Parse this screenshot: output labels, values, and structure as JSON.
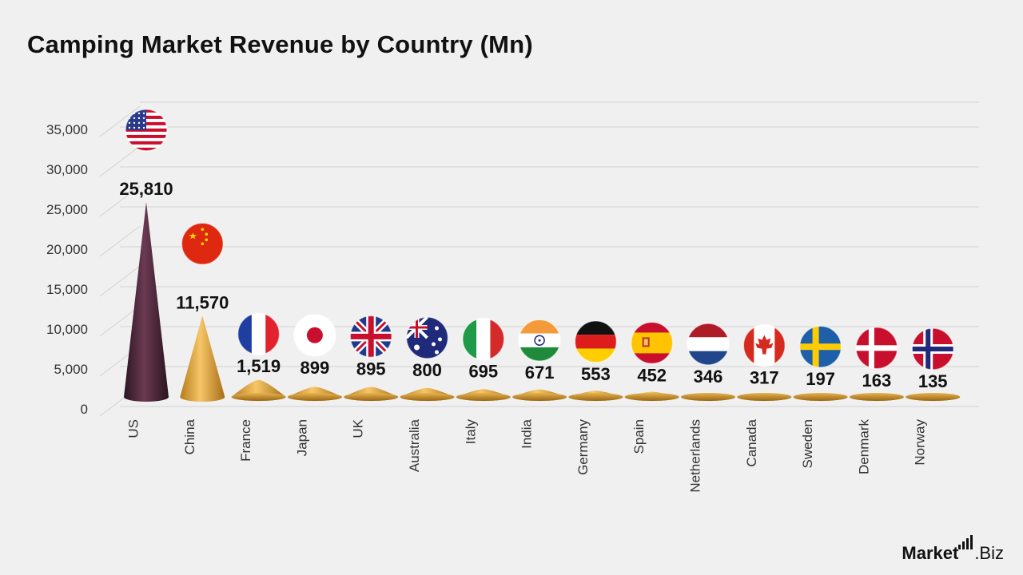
{
  "title": "Camping Market Revenue by Country (Mn)",
  "brand": {
    "name_bold": "Market",
    "name_rest": ".Biz"
  },
  "colors": {
    "us_cone": "#4a2436",
    "gold_cone": "#e0a838",
    "grid": "#d2d2d2",
    "text": "#111111",
    "axis_text": "#333333"
  },
  "chart_data": {
    "type": "bar",
    "categories": [
      "US",
      "China",
      "France",
      "Japan",
      "UK",
      "Australia",
      "Italy",
      "India",
      "Germany",
      "Spain",
      "Netherlands",
      "Canada",
      "Sweden",
      "Denmark",
      "Norway"
    ],
    "values": [
      25810,
      11570,
      1519,
      899,
      895,
      800,
      695,
      671,
      553,
      452,
      346,
      317,
      197,
      163,
      135
    ],
    "data_labels": [
      "25,810",
      "11,570",
      "1,519",
      "899",
      "895",
      "800",
      "695",
      "671",
      "553",
      "452",
      "346",
      "317",
      "197",
      "163",
      "135"
    ],
    "flag_icons": [
      "us-flag-icon",
      "china-flag-icon",
      "france-flag-icon",
      "japan-flag-icon",
      "uk-flag-icon",
      "australia-flag-icon",
      "italy-flag-icon",
      "india-flag-icon",
      "germany-flag-icon",
      "spain-flag-icon",
      "netherlands-flag-icon",
      "canada-flag-icon",
      "sweden-flag-icon",
      "denmark-flag-icon",
      "norway-flag-icon"
    ],
    "yticks": [
      "0",
      "5,000",
      "10,000",
      "15,000",
      "20,000",
      "25,000",
      "30,000",
      "35,000"
    ],
    "ytick_values": [
      0,
      5000,
      10000,
      15000,
      20000,
      25000,
      30000,
      35000
    ],
    "ylim": [
      0,
      37000
    ],
    "grid": true,
    "mark_shape": "cone"
  }
}
